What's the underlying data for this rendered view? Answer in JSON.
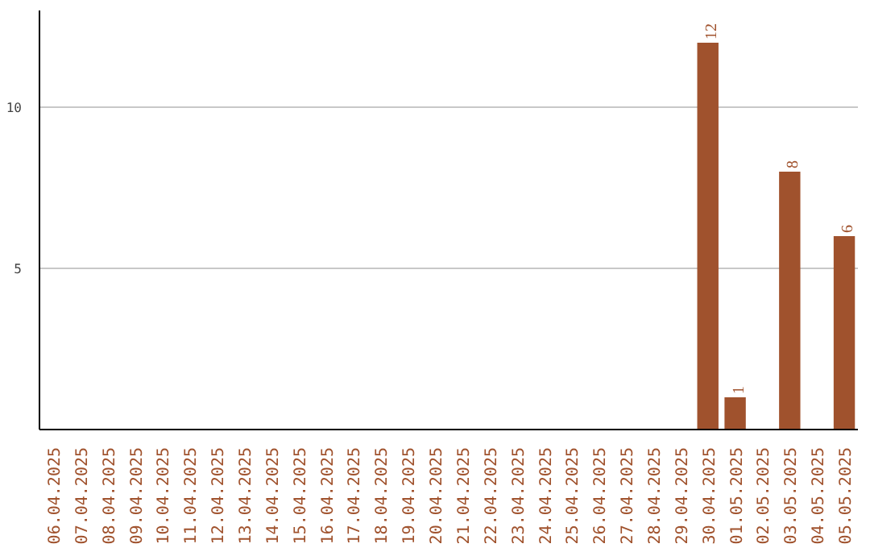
{
  "chart_data": {
    "type": "bar",
    "categories": [
      "06.04.2025",
      "07.04.2025",
      "08.04.2025",
      "09.04.2025",
      "10.04.2025",
      "11.04.2025",
      "12.04.2025",
      "13.04.2025",
      "14.04.2025",
      "15.04.2025",
      "16.04.2025",
      "17.04.2025",
      "18.04.2025",
      "19.04.2025",
      "20.04.2025",
      "21.04.2025",
      "22.04.2025",
      "23.04.2025",
      "24.04.2025",
      "25.04.2025",
      "26.04.2025",
      "27.04.2025",
      "28.04.2025",
      "29.04.2025",
      "30.04.2025",
      "01.05.2025",
      "02.05.2025",
      "03.05.2025",
      "04.05.2025",
      "05.05.2025"
    ],
    "values": [
      0,
      0,
      0,
      0,
      0,
      0,
      0,
      0,
      0,
      0,
      0,
      0,
      0,
      0,
      0,
      0,
      0,
      0,
      0,
      0,
      0,
      0,
      0,
      0,
      12,
      1,
      0,
      8,
      0,
      6
    ],
    "value_labels": [
      null,
      null,
      null,
      null,
      null,
      null,
      null,
      null,
      null,
      null,
      null,
      null,
      null,
      null,
      null,
      null,
      null,
      null,
      null,
      null,
      null,
      null,
      null,
      null,
      "12",
      "1",
      null,
      "8",
      null,
      "6"
    ],
    "color": "#a0522d",
    "ylim": [
      0,
      13
    ],
    "yticks": [
      5,
      10
    ],
    "grid": "y"
  }
}
